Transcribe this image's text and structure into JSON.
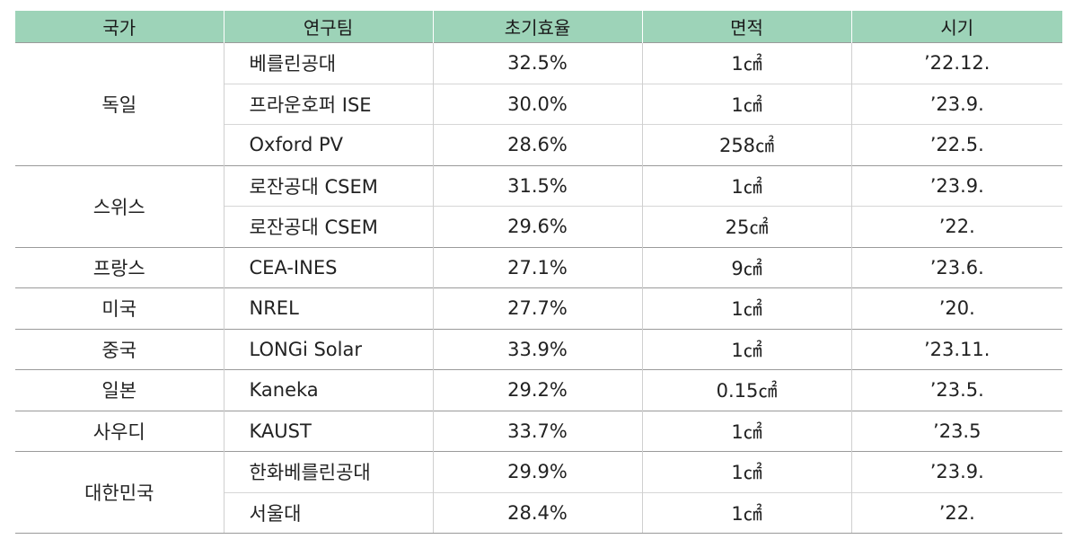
{
  "table": {
    "headers": [
      "국가",
      "연구팀",
      "초기효율",
      "면적",
      "시기"
    ],
    "groups": [
      {
        "country": "독일",
        "rows": [
          {
            "team": "베를린공대",
            "efficiency": "32.5%",
            "area": "1㎠",
            "date": "’22.12."
          },
          {
            "team": "프라운호퍼 ISE",
            "efficiency": "30.0%",
            "area": "1㎠",
            "date": "’23.9."
          },
          {
            "team": "Oxford PV",
            "efficiency": "28.6%",
            "area": "258㎠",
            "date": "’22.5."
          }
        ]
      },
      {
        "country": "스위스",
        "rows": [
          {
            "team": "로잔공대 CSEM",
            "efficiency": "31.5%",
            "area": "1㎠",
            "date": "’23.9."
          },
          {
            "team": "로잔공대 CSEM",
            "efficiency": "29.6%",
            "area": "25㎠",
            "date": "’22."
          }
        ]
      },
      {
        "country": "프랑스",
        "rows": [
          {
            "team": "CEA-INES",
            "efficiency": "27.1%",
            "area": "9㎠",
            "date": "’23.6."
          }
        ]
      },
      {
        "country": "미국",
        "rows": [
          {
            "team": "NREL",
            "efficiency": "27.7%",
            "area": "1㎠",
            "date": "’20."
          }
        ]
      },
      {
        "country": "중국",
        "rows": [
          {
            "team": "LONGi Solar",
            "efficiency": "33.9%",
            "area": "1㎠",
            "date": "’23.11."
          }
        ]
      },
      {
        "country": "일본",
        "rows": [
          {
            "team": "Kaneka",
            "efficiency": "29.2%",
            "area": "0.15㎠",
            "date": "’23.5."
          }
        ]
      },
      {
        "country": "사우디",
        "rows": [
          {
            "team": "KAUST",
            "efficiency": "33.7%",
            "area": "1㎠",
            "date": "’23.5"
          }
        ]
      },
      {
        "country": "대한민국",
        "rows": [
          {
            "team": "한화베를린공대",
            "efficiency": "29.9%",
            "area": "1㎠",
            "date": "’23.9."
          },
          {
            "team": "서울대",
            "efficiency": "28.4%",
            "area": "1㎠",
            "date": "’22."
          }
        ]
      }
    ]
  },
  "colors": {
    "header_bg": "#9dd3b8"
  }
}
